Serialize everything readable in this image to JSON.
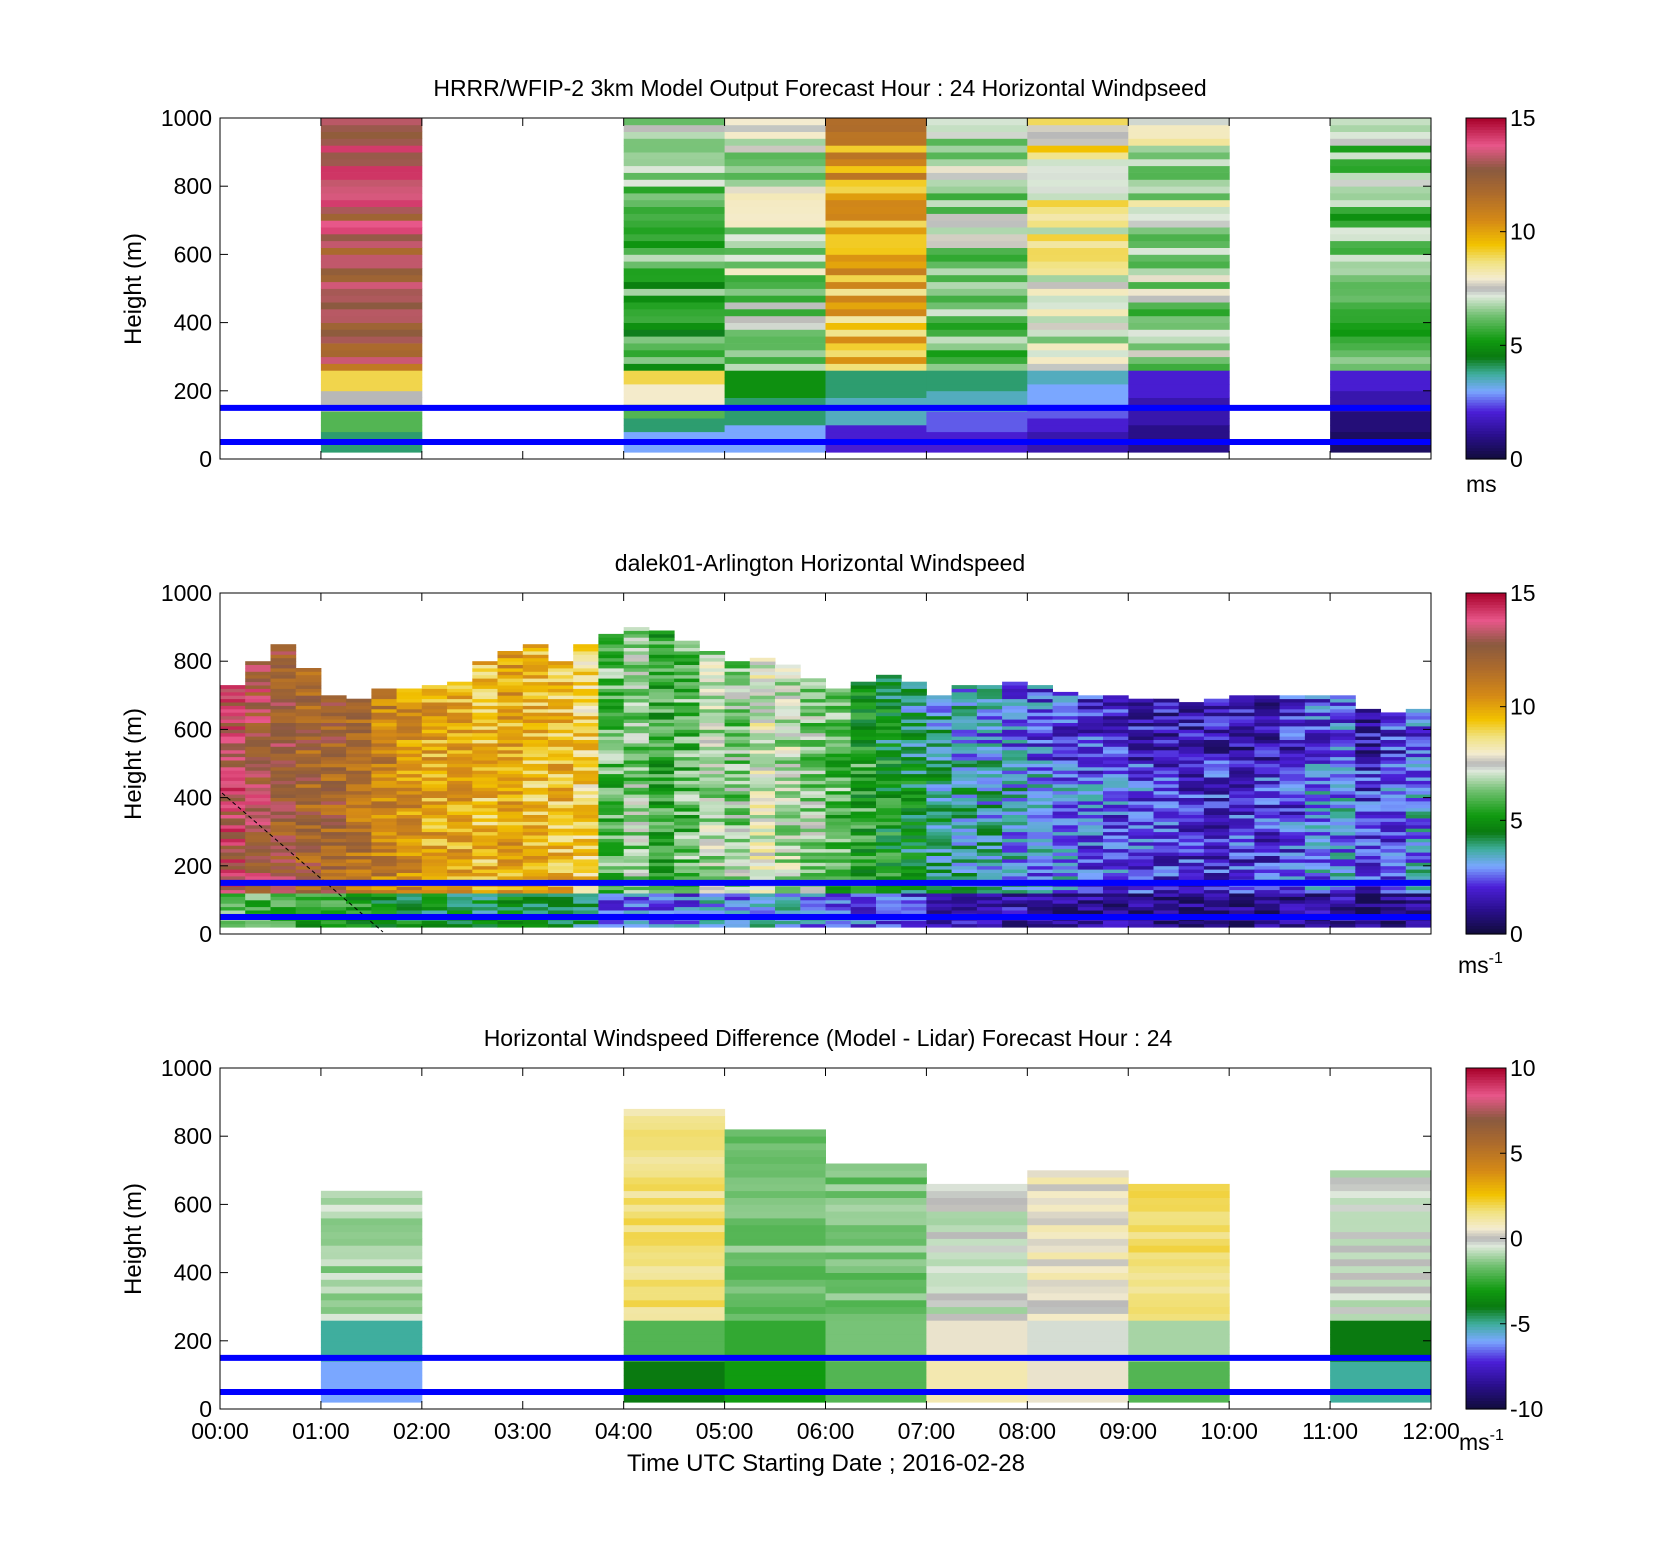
{
  "x_axis": {
    "label": "Time UTC  Starting Date ; 2016-02-28",
    "ticks": [
      "00:00",
      "01:00",
      "02:00",
      "03:00",
      "04:00",
      "05:00",
      "06:00",
      "07:00",
      "08:00",
      "09:00",
      "10:00",
      "11:00",
      "12:00"
    ]
  },
  "reference_lines_m": [
    50,
    150
  ],
  "colors": {
    "reference_line": "#0000ff"
  },
  "chart_data": [
    {
      "type": "heatmap",
      "title": "HRRR/WFIP-2 3km Model Output   Forecast Hour : 24 Horizontal Windpseed",
      "xlabel": "",
      "ylabel": "Height (m)",
      "ylim": [
        0,
        1000
      ],
      "yticks": [
        "0",
        "200",
        "400",
        "600",
        "800",
        "1000"
      ],
      "colorbar": {
        "min": 0,
        "max": 15,
        "ticks": [
          "0",
          "5",
          "10",
          "15"
        ],
        "unit": "ms",
        "unit_sup": ""
      },
      "columns": [
        {
          "hour": 1,
          "low": [
            4,
            6,
            7.5,
            9
          ],
          "high": 12
        },
        {
          "hour": 4,
          "low": [
            3,
            4,
            6,
            8,
            9
          ],
          "high": 5
        },
        {
          "hour": 5,
          "low": [
            3,
            4,
            5
          ],
          "high": 6
        },
        {
          "hour": 6,
          "low": [
            2,
            3.5,
            4
          ],
          "high": 9
        },
        {
          "hour": 7,
          "low": [
            2,
            2.5,
            3.5,
            4
          ],
          "high": 5.5
        },
        {
          "hour": 8,
          "low": [
            1.5,
            2,
            2.5,
            3,
            3.5
          ],
          "high": 7
        },
        {
          "hour": 9,
          "low": [
            1,
            1.5,
            2
          ],
          "high": 6
        },
        {
          "hour": 11,
          "low": [
            0.5,
            0.8,
            1.5,
            2
          ],
          "high": 5
        }
      ]
    },
    {
      "type": "heatmap",
      "title": "dalek01-Arlington  Horizontal Windspeed",
      "xlabel": "",
      "ylabel": "Height (m)",
      "ylim": [
        0,
        1000
      ],
      "yticks": [
        "0",
        "200",
        "400",
        "600",
        "800",
        "1000"
      ],
      "colorbar": {
        "min": 0,
        "max": 15,
        "ticks": [
          "0",
          "5",
          "10",
          "15"
        ],
        "unit": "ms",
        "unit_sup": "-1"
      },
      "columns": [
        {
          "hour": 0.0,
          "top": 730,
          "speed": 13.5
        },
        {
          "hour": 0.25,
          "top": 800,
          "speed": 13
        },
        {
          "hour": 0.5,
          "top": 850,
          "speed": 12.5
        },
        {
          "hour": 0.75,
          "top": 780,
          "speed": 12
        },
        {
          "hour": 1.0,
          "top": 700,
          "speed": 12
        },
        {
          "hour": 1.25,
          "top": 690,
          "speed": 11.5
        },
        {
          "hour": 1.5,
          "top": 720,
          "speed": 11
        },
        {
          "hour": 1.75,
          "top": 720,
          "speed": 10.5
        },
        {
          "hour": 2.0,
          "top": 730,
          "speed": 10
        },
        {
          "hour": 2.25,
          "top": 740,
          "speed": 10
        },
        {
          "hour": 2.5,
          "top": 800,
          "speed": 9.5
        },
        {
          "hour": 2.75,
          "top": 830,
          "speed": 10
        },
        {
          "hour": 3.0,
          "top": 850,
          "speed": 9.5
        },
        {
          "hour": 3.25,
          "top": 800,
          "speed": 9.5
        },
        {
          "hour": 3.5,
          "top": 850,
          "speed": 9
        },
        {
          "hour": 3.75,
          "top": 880,
          "speed": 6
        },
        {
          "hour": 4.0,
          "top": 900,
          "speed": 6.5
        },
        {
          "hour": 4.25,
          "top": 890,
          "speed": 5.5
        },
        {
          "hour": 4.5,
          "top": 860,
          "speed": 6
        },
        {
          "hour": 4.75,
          "top": 830,
          "speed": 7
        },
        {
          "hour": 5.0,
          "top": 800,
          "speed": 6.5
        },
        {
          "hour": 5.25,
          "top": 810,
          "speed": 7.5
        },
        {
          "hour": 5.5,
          "top": 790,
          "speed": 7
        },
        {
          "hour": 5.75,
          "top": 750,
          "speed": 6.5
        },
        {
          "hour": 6.0,
          "top": 720,
          "speed": 6
        },
        {
          "hour": 6.25,
          "top": 740,
          "speed": 5.5
        },
        {
          "hour": 6.5,
          "top": 760,
          "speed": 5
        },
        {
          "hour": 6.75,
          "top": 740,
          "speed": 4.5
        },
        {
          "hour": 7.0,
          "top": 700,
          "speed": 4
        },
        {
          "hour": 7.25,
          "top": 730,
          "speed": 3.8
        },
        {
          "hour": 7.5,
          "top": 730,
          "speed": 3.5
        },
        {
          "hour": 7.75,
          "top": 740,
          "speed": 3.3
        },
        {
          "hour": 8.0,
          "top": 730,
          "speed": 3
        },
        {
          "hour": 8.25,
          "top": 710,
          "speed": 2.8
        },
        {
          "hour": 8.5,
          "top": 700,
          "speed": 2.6
        },
        {
          "hour": 8.75,
          "top": 700,
          "speed": 2.5
        },
        {
          "hour": 9.0,
          "top": 690,
          "speed": 2.3
        },
        {
          "hour": 9.25,
          "top": 690,
          "speed": 2.1
        },
        {
          "hour": 9.5,
          "top": 680,
          "speed": 2
        },
        {
          "hour": 9.75,
          "top": 690,
          "speed": 2
        },
        {
          "hour": 10.0,
          "top": 700,
          "speed": 2
        },
        {
          "hour": 10.25,
          "top": 700,
          "speed": 2.1
        },
        {
          "hour": 10.5,
          "top": 700,
          "speed": 2.3
        },
        {
          "hour": 10.75,
          "top": 700,
          "speed": 2.8
        },
        {
          "hour": 11.0,
          "top": 700,
          "speed": 3
        },
        {
          "hour": 11.25,
          "top": 660,
          "speed": 2
        },
        {
          "hour": 11.5,
          "top": 650,
          "speed": 2.5
        },
        {
          "hour": 11.75,
          "top": 660,
          "speed": 3
        }
      ]
    },
    {
      "type": "heatmap",
      "title": "Horizontal Windspeed Difference (Model - Lidar) Forecast Hour : 24",
      "xlabel": "Time UTC  Starting Date ; 2016-02-28",
      "ylabel": "Height (m)",
      "ylim": [
        0,
        1000
      ],
      "yticks": [
        "0",
        "200",
        "400",
        "600",
        "800",
        "1000"
      ],
      "colorbar": {
        "min": -10,
        "max": 10,
        "ticks": [
          "-10",
          "-5",
          "0",
          "5",
          "10"
        ],
        "unit": "ms",
        "unit_sup": "-1"
      },
      "columns": [
        {
          "hour": 1,
          "top": 640,
          "low": [
            -6,
            -5
          ],
          "high": -1
        },
        {
          "hour": 4,
          "top": 880,
          "low": [
            -4,
            -2
          ],
          "high": 1.5
        },
        {
          "hour": 5,
          "top": 810,
          "low": [
            -3,
            -2.5
          ],
          "high": -1.5
        },
        {
          "hour": 6,
          "top": 720,
          "low": [
            -2,
            -1.5
          ],
          "high": -1.5
        },
        {
          "hour": 7,
          "top": 650,
          "low": [
            1,
            0.5
          ],
          "high": -0.5
        },
        {
          "hour": 8,
          "top": 690,
          "low": [
            0.5,
            -0.3
          ],
          "high": 0.5
        },
        {
          "hour": 9,
          "top": 650,
          "low": [
            -2,
            -1
          ],
          "high": 1.5
        },
        {
          "hour": 11,
          "top": 690,
          "low": [
            -5,
            -4
          ],
          "high": -0.5
        }
      ]
    }
  ]
}
